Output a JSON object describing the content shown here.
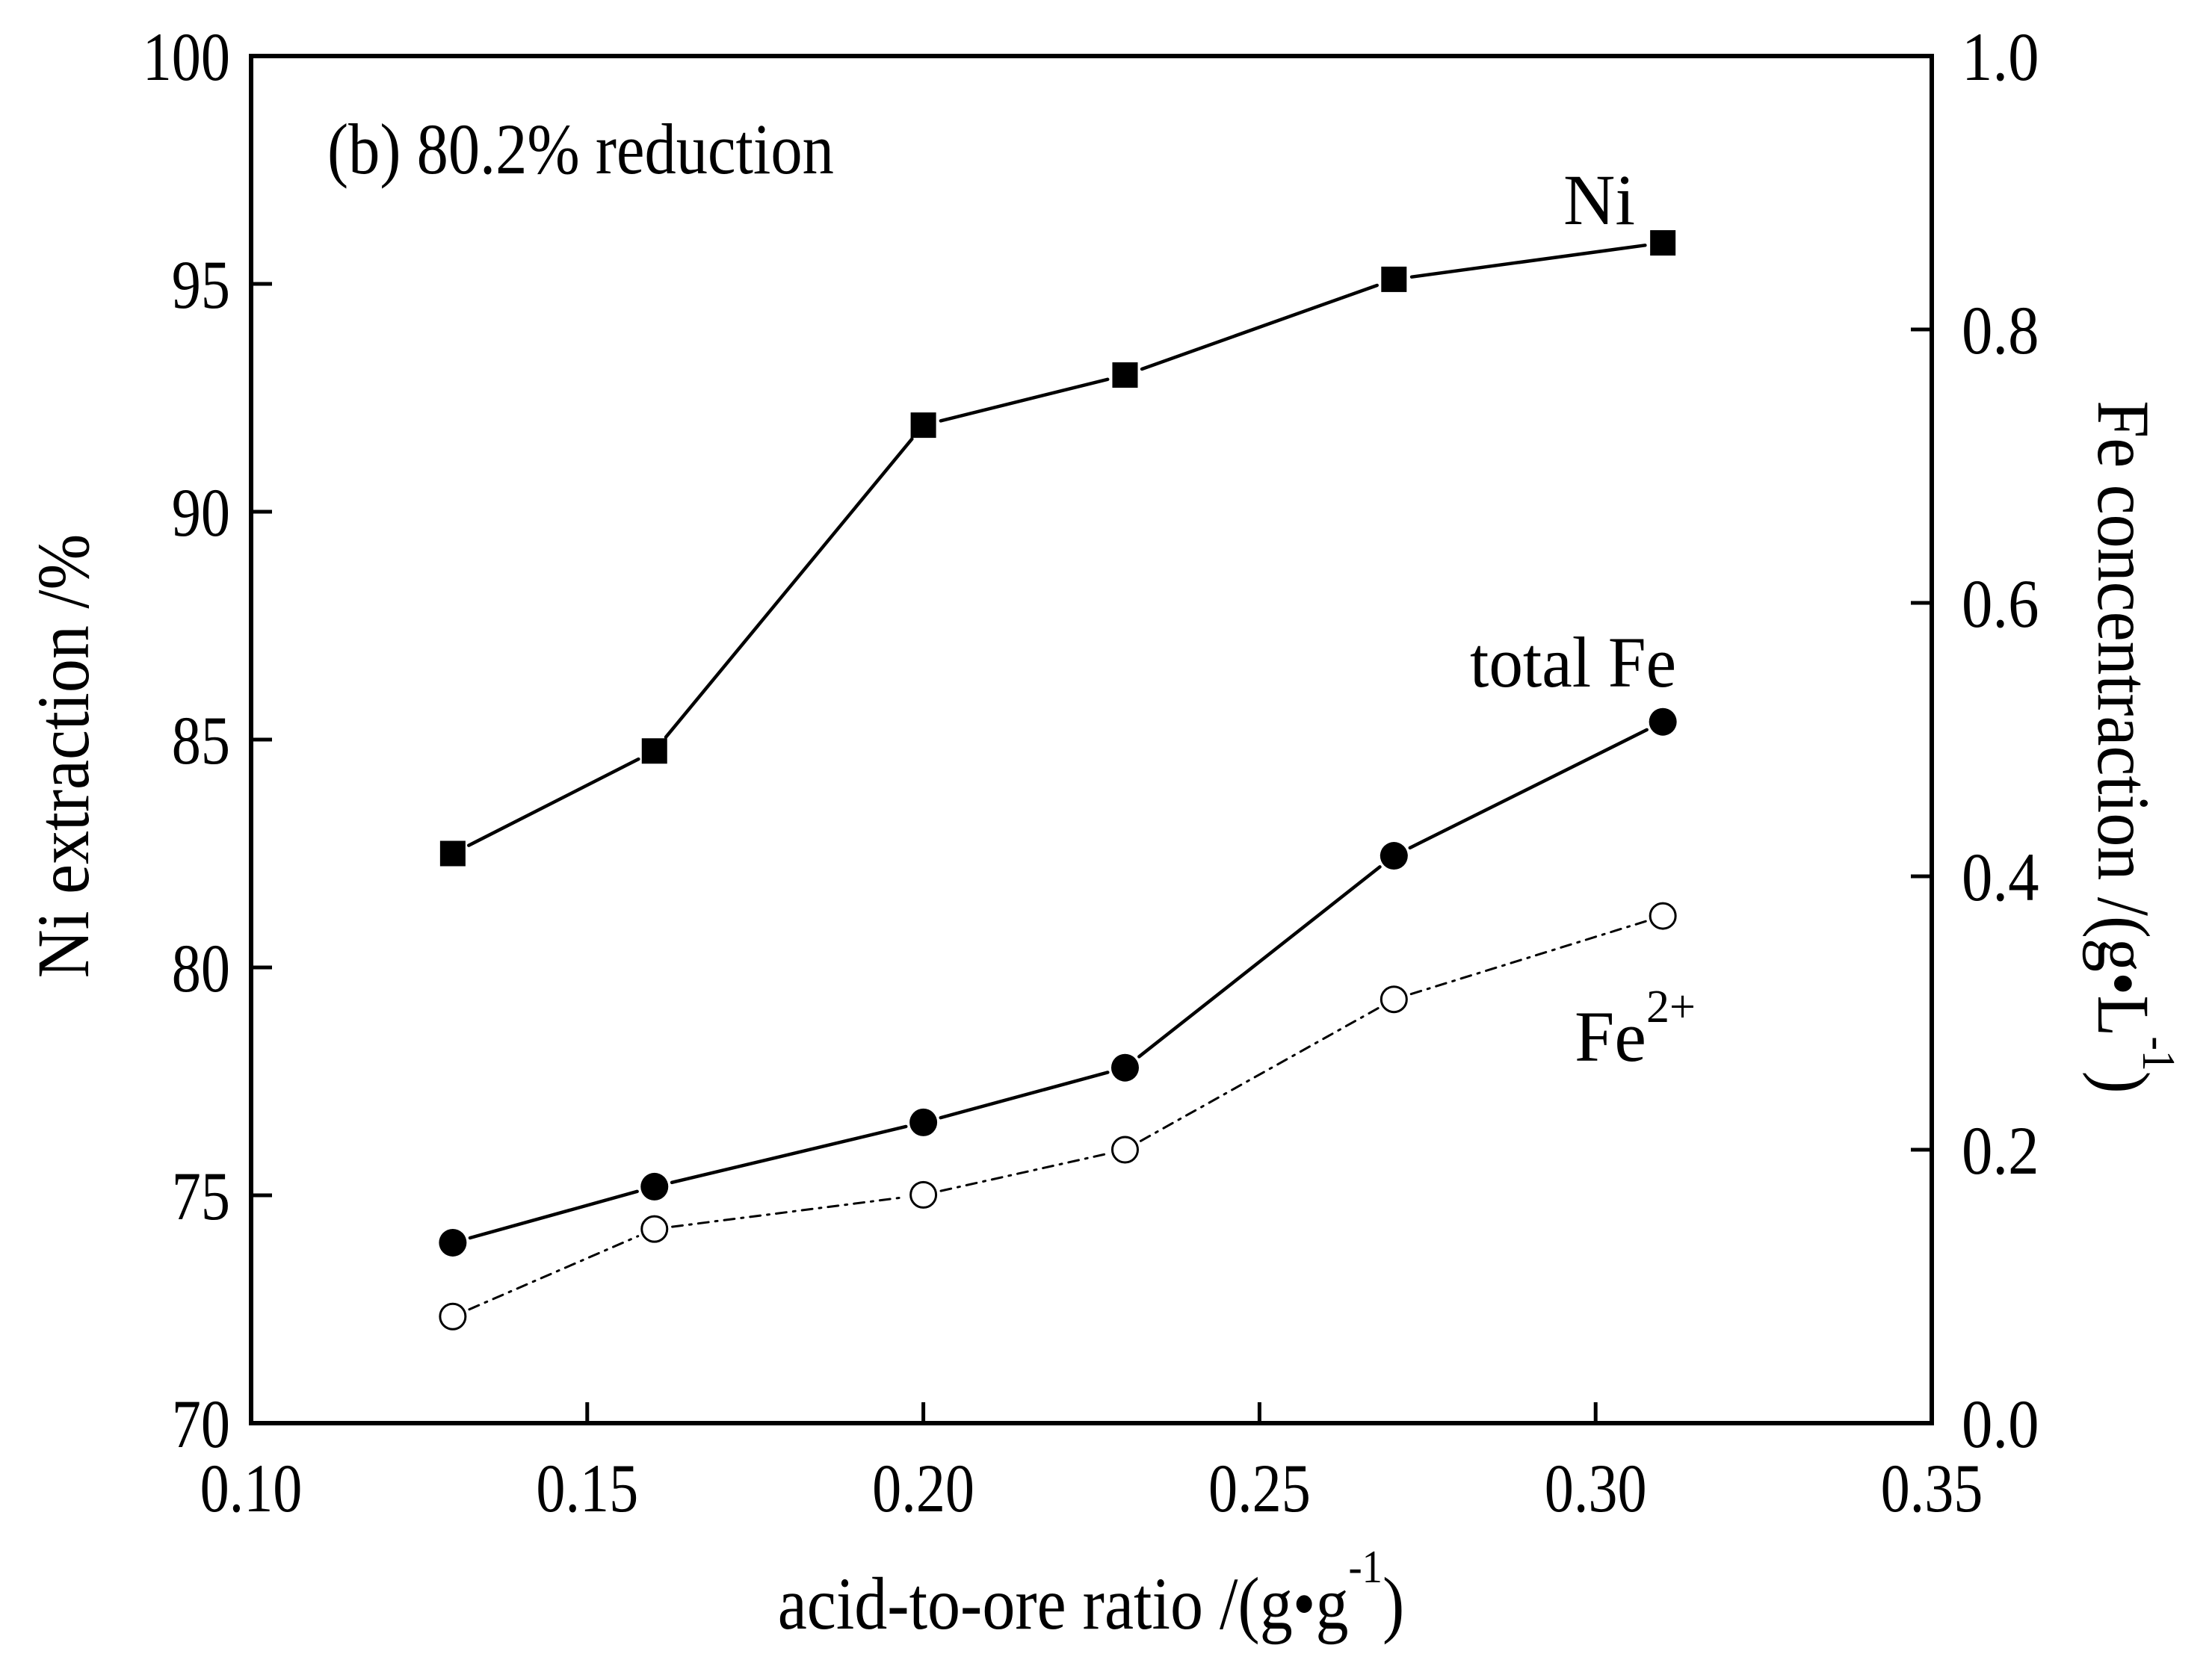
{
  "chart_data": {
    "type": "line",
    "title": "",
    "annotation": "(b) 80.2% reduction",
    "xlabel": {
      "main": "acid-to-ore ratio /(g•g",
      "sup": "-1",
      "tail": ")"
    },
    "ylabel_left": "Ni extraction /%",
    "ylabel_right": {
      "main": "Fe concentraction /(g•L",
      "sup": "-1",
      "tail": ")"
    },
    "xlim": [
      0.1,
      0.35
    ],
    "ylim_left": [
      70,
      100
    ],
    "ylim_right": [
      0.0,
      1.0
    ],
    "x_ticks": [
      "0.10",
      "0.15",
      "0.20",
      "0.25",
      "0.30",
      "0.35"
    ],
    "y_left_ticks": [
      "70",
      "75",
      "80",
      "85",
      "90",
      "95",
      "100"
    ],
    "y_right_ticks": [
      "0.0",
      "0.2",
      "0.4",
      "0.6",
      "0.8",
      "1.0"
    ],
    "grid": false,
    "legend": "none (inline series labels)",
    "x": [
      0.13,
      0.16,
      0.2,
      0.23,
      0.27,
      0.31
    ],
    "series": [
      {
        "name": "Ni",
        "label": "Ni",
        "axis": "left",
        "marker": "filled-square",
        "line": "solid",
        "values": [
          82.5,
          84.75,
          91.9,
          93.0,
          95.1,
          95.9
        ]
      },
      {
        "name": "total Fe",
        "label": "total Fe",
        "axis": "right",
        "marker": "filled-circle",
        "line": "solid",
        "values": [
          0.132,
          0.173,
          0.22,
          0.26,
          0.415,
          0.513
        ]
      },
      {
        "name": "Fe2+",
        "label": "Fe",
        "label_sup": "2+",
        "axis": "right",
        "marker": "open-circle",
        "line": "dash-dot",
        "values": [
          0.078,
          0.142,
          0.167,
          0.2,
          0.31,
          0.371
        ]
      }
    ],
    "colors": {
      "foreground": "#000000",
      "background": "#ffffff"
    }
  }
}
